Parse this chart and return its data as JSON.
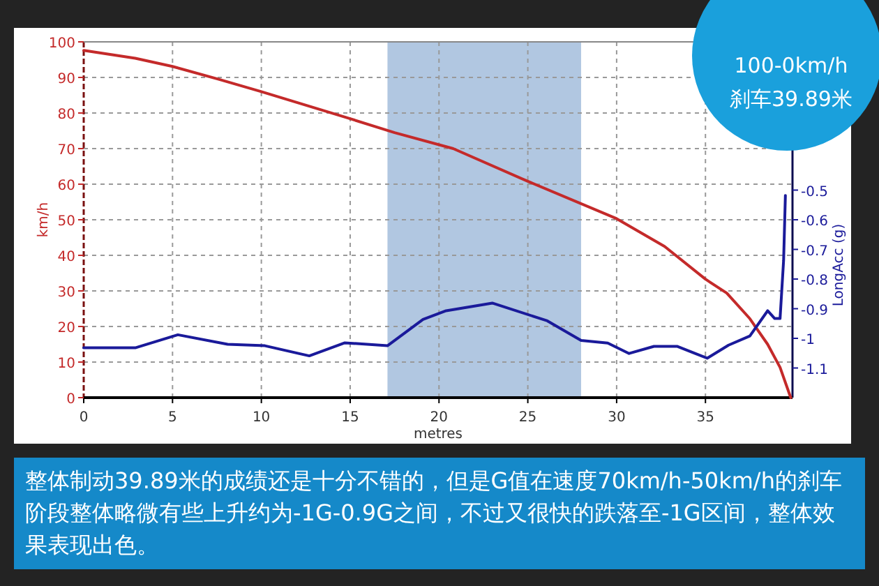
{
  "chart_data": {
    "type": "line",
    "xlabel": "metres",
    "ylabel": "km/h",
    "y2label": "LongAcc (g)",
    "annotations": [
      "100-0km/h",
      "刹车39.89米",
      "整体制动39.89米的成绩还是十分不错的，但是G值在速度70km/h-50km/h的刹车阶段整体略微有些上升约为-1G-0.9G之间，不过又很快的跌落至-1G区间，整体效果表现出色。"
    ],
    "xlim": [
      0,
      39.9
    ],
    "xticks": [
      0,
      5,
      10,
      15,
      20,
      25,
      30,
      35
    ],
    "ylim": [
      0,
      100
    ],
    "yticks": [
      0,
      10,
      20,
      30,
      40,
      50,
      60,
      70,
      80,
      90,
      100
    ],
    "y2lim": [
      -1.2,
      0
    ],
    "y2ticks": [
      -0.5,
      -0.6,
      -0.7,
      -0.8,
      -0.9,
      -1,
      -1.1
    ],
    "grid": true,
    "bands": [
      {
        "axis": "x",
        "from": 17.1,
        "to": 28.0,
        "color": "#1f5fa8"
      }
    ],
    "series": [
      {
        "color": "#c42a2a",
        "x": [
          0,
          2.9,
          5,
          7.6,
          10,
          15,
          17.5,
          20.8,
          25,
          30,
          32.7,
          35,
          36.2,
          37.5,
          38.5,
          39.2,
          39.8
        ],
        "values": [
          97.6,
          95.4,
          93.1,
          89.5,
          86.0,
          78.4,
          74.5,
          70,
          60.8,
          50.3,
          42.5,
          33.3,
          29.4,
          22.2,
          15.0,
          8.5,
          0
        ]
      },
      {
        "color": "#1a1a9a",
        "axis": "y2",
        "x": [
          0,
          2.9,
          5.3,
          8.1,
          10.2,
          12.7,
          14.7,
          17.1,
          19.1,
          20.4,
          21.7,
          23.0,
          26.1,
          28.0,
          29.5,
          30.7,
          32.1,
          33.4,
          35.1,
          36.3,
          37.5,
          38.5,
          38.9,
          39.2,
          39.4,
          39.5
        ],
        "values": [
          -1.032,
          -1.032,
          -0.988,
          -1.02,
          -1.025,
          -1.059,
          -1.015,
          -1.025,
          -0.936,
          -0.907,
          -0.894,
          -0.881,
          -0.941,
          -1.007,
          -1.016,
          -1.051,
          -1.027,
          -1.027,
          -1.067,
          -1.023,
          -0.992,
          -0.907,
          -0.933,
          -0.933,
          -0.737,
          -0.518
        ]
      }
    ]
  }
}
